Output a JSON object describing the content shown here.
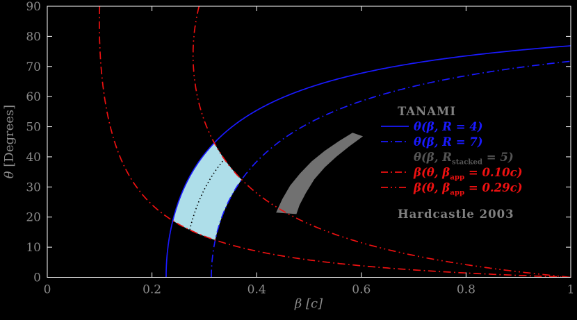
{
  "figure": {
    "background": "#000000"
  },
  "colors": {
    "frame": "#ffffff",
    "tick_text": "#8a8a8a",
    "axis_label_text": "#8a8a8a",
    "blue": "#1a1aff",
    "red": "#ee1111",
    "region_blue": "#aedee9",
    "region_gray": "#717171",
    "dotted_black": "#000000",
    "legend_header_text": "#808080",
    "stacked_label_text": "#555555"
  },
  "chart_data": {
    "type": "line",
    "title": "",
    "xlabel": "β [c]",
    "ylabel": "θ [Degrees]",
    "xlabel_symbol": "β",
    "xlabel_rest": " [c]",
    "ylabel_symbol": "θ",
    "ylabel_rest": " [Degrees]",
    "xlim": [
      0,
      1
    ],
    "ylim": [
      0,
      90
    ],
    "grid": false,
    "legend_position": "right-center",
    "x_tick_values": [
      0,
      0.2,
      0.4,
      0.6,
      0.8,
      1
    ],
    "x_tick_labels": [
      "0",
      "0.2",
      "0.4",
      "0.6",
      "0.8",
      "1"
    ],
    "y_tick_values": [
      0,
      10,
      20,
      30,
      40,
      50,
      60,
      70,
      80,
      90
    ],
    "y_tick_labels": [
      "0",
      "10",
      "20",
      "30",
      "40",
      "50",
      "60",
      "70",
      "80",
      "90"
    ],
    "curves": [
      {
        "id": "theta-of-beta-R4",
        "label": "θ(β, R = 4)",
        "formula": "theta(beta) = arccos(((R^(1/3)-1)/(R^(1/3)+1))/beta)",
        "R": 4,
        "beta_min": 0.2271,
        "style": "solid",
        "color": "#1a1aff",
        "width": 1.7
      },
      {
        "id": "theta-of-beta-R7",
        "label": "θ(β, R = 7)",
        "formula": "theta(beta) = arccos(((R^(1/3)-1)/(R^(1/3)+1))/beta)",
        "R": 7,
        "beta_min": 0.3134,
        "style": "dashdot",
        "color": "#1a1aff",
        "width": 1.7
      },
      {
        "id": "theta-of-beta-Rstacked5",
        "label": "θ(β, R_stacked = 5)",
        "formula": "theta(beta) = arccos(((R^(1/3)-1)/(R^(1/3)+1))/beta)",
        "R": 5,
        "beta_min": 0.2617,
        "style": "dotted",
        "color": "#000000",
        "width": 1.6,
        "clip_theta_between_beta_app": [
          0.1,
          0.29
        ]
      },
      {
        "id": "beta-of-theta-bapp-010c",
        "label": "β(θ, β_app = 0.10c)",
        "formula": "beta(theta) = beta_app/(sin(theta)+beta_app*cos(theta))",
        "beta_app": 0.1,
        "beta_at_90deg": 0.1,
        "style": "dashdot",
        "color": "#ee1111",
        "width": 1.7
      },
      {
        "id": "beta-of-theta-bapp-029c",
        "label": "β(θ, β_app = 0.29c)",
        "formula": "beta(theta) = beta_app/(sin(theta)+beta_app*cos(theta))",
        "beta_app": 0.29,
        "beta_at_90deg": 0.29,
        "style": "dashdotdot",
        "color": "#ee1111",
        "width": 1.7
      }
    ],
    "regions": [
      {
        "id": "tanami-allowed-region",
        "label": "TANAMI",
        "color": "#aedee9",
        "definition": "4 <= R <= 7 and 0.10c <= beta_app <= 0.29c",
        "corner_points_beta_theta": [
          [
            0.24,
            18.8
          ],
          [
            0.32,
            44.7
          ],
          [
            0.372,
            32.5
          ],
          [
            0.321,
            12.4
          ]
        ]
      },
      {
        "id": "hardcastle-2003-region",
        "label": "Hardcastle 2003",
        "color": "#717171",
        "polygon_beta_theta": [
          [
            0.437,
            21.5
          ],
          [
            0.449,
            26.0
          ],
          [
            0.464,
            30.5
          ],
          [
            0.483,
            34.5
          ],
          [
            0.505,
            38.5
          ],
          [
            0.53,
            42.0
          ],
          [
            0.557,
            45.2
          ],
          [
            0.583,
            48.0
          ],
          [
            0.603,
            46.8
          ],
          [
            0.577,
            43.5
          ],
          [
            0.552,
            40.0
          ],
          [
            0.53,
            36.5
          ],
          [
            0.51,
            32.5
          ],
          [
            0.494,
            28.0
          ],
          [
            0.482,
            24.0
          ],
          [
            0.476,
            21.0
          ]
        ]
      }
    ]
  },
  "legend": {
    "items": [
      {
        "name": "legend-header-tanami",
        "type": "header",
        "label": "TANAMI",
        "color": "#808080"
      },
      {
        "name": "legend-item-r4",
        "type": "line",
        "dash": "solid",
        "color": "#1a1aff",
        "pre": "θ(β, R = 4)",
        "sub": "",
        "post": ""
      },
      {
        "name": "legend-item-r7",
        "type": "line",
        "dash": "dashdot",
        "color": "#1a1aff",
        "pre": "θ(β, R = 7)",
        "sub": "",
        "post": ""
      },
      {
        "name": "legend-item-rstacked5",
        "type": "line",
        "dash": "dotted",
        "color": "#000000",
        "label_color": "#555555",
        "pre": "θ(β, R",
        "sub": "stacked",
        "post": " = 5)"
      },
      {
        "name": "legend-item-bapp010",
        "type": "line",
        "dash": "dashdot",
        "color": "#ee1111",
        "pre": "β(θ, β",
        "sub": "app",
        "post": " = 0.10c)"
      },
      {
        "name": "legend-item-bapp029",
        "type": "line",
        "dash": "dashdotdot",
        "color": "#ee1111",
        "pre": "β(θ, β",
        "sub": "app",
        "post": " = 0.29c)"
      },
      {
        "name": "legend-header-hardcastle",
        "type": "header",
        "label": "Hardcastle 2003",
        "color": "#808080",
        "gap_before": true
      }
    ]
  }
}
